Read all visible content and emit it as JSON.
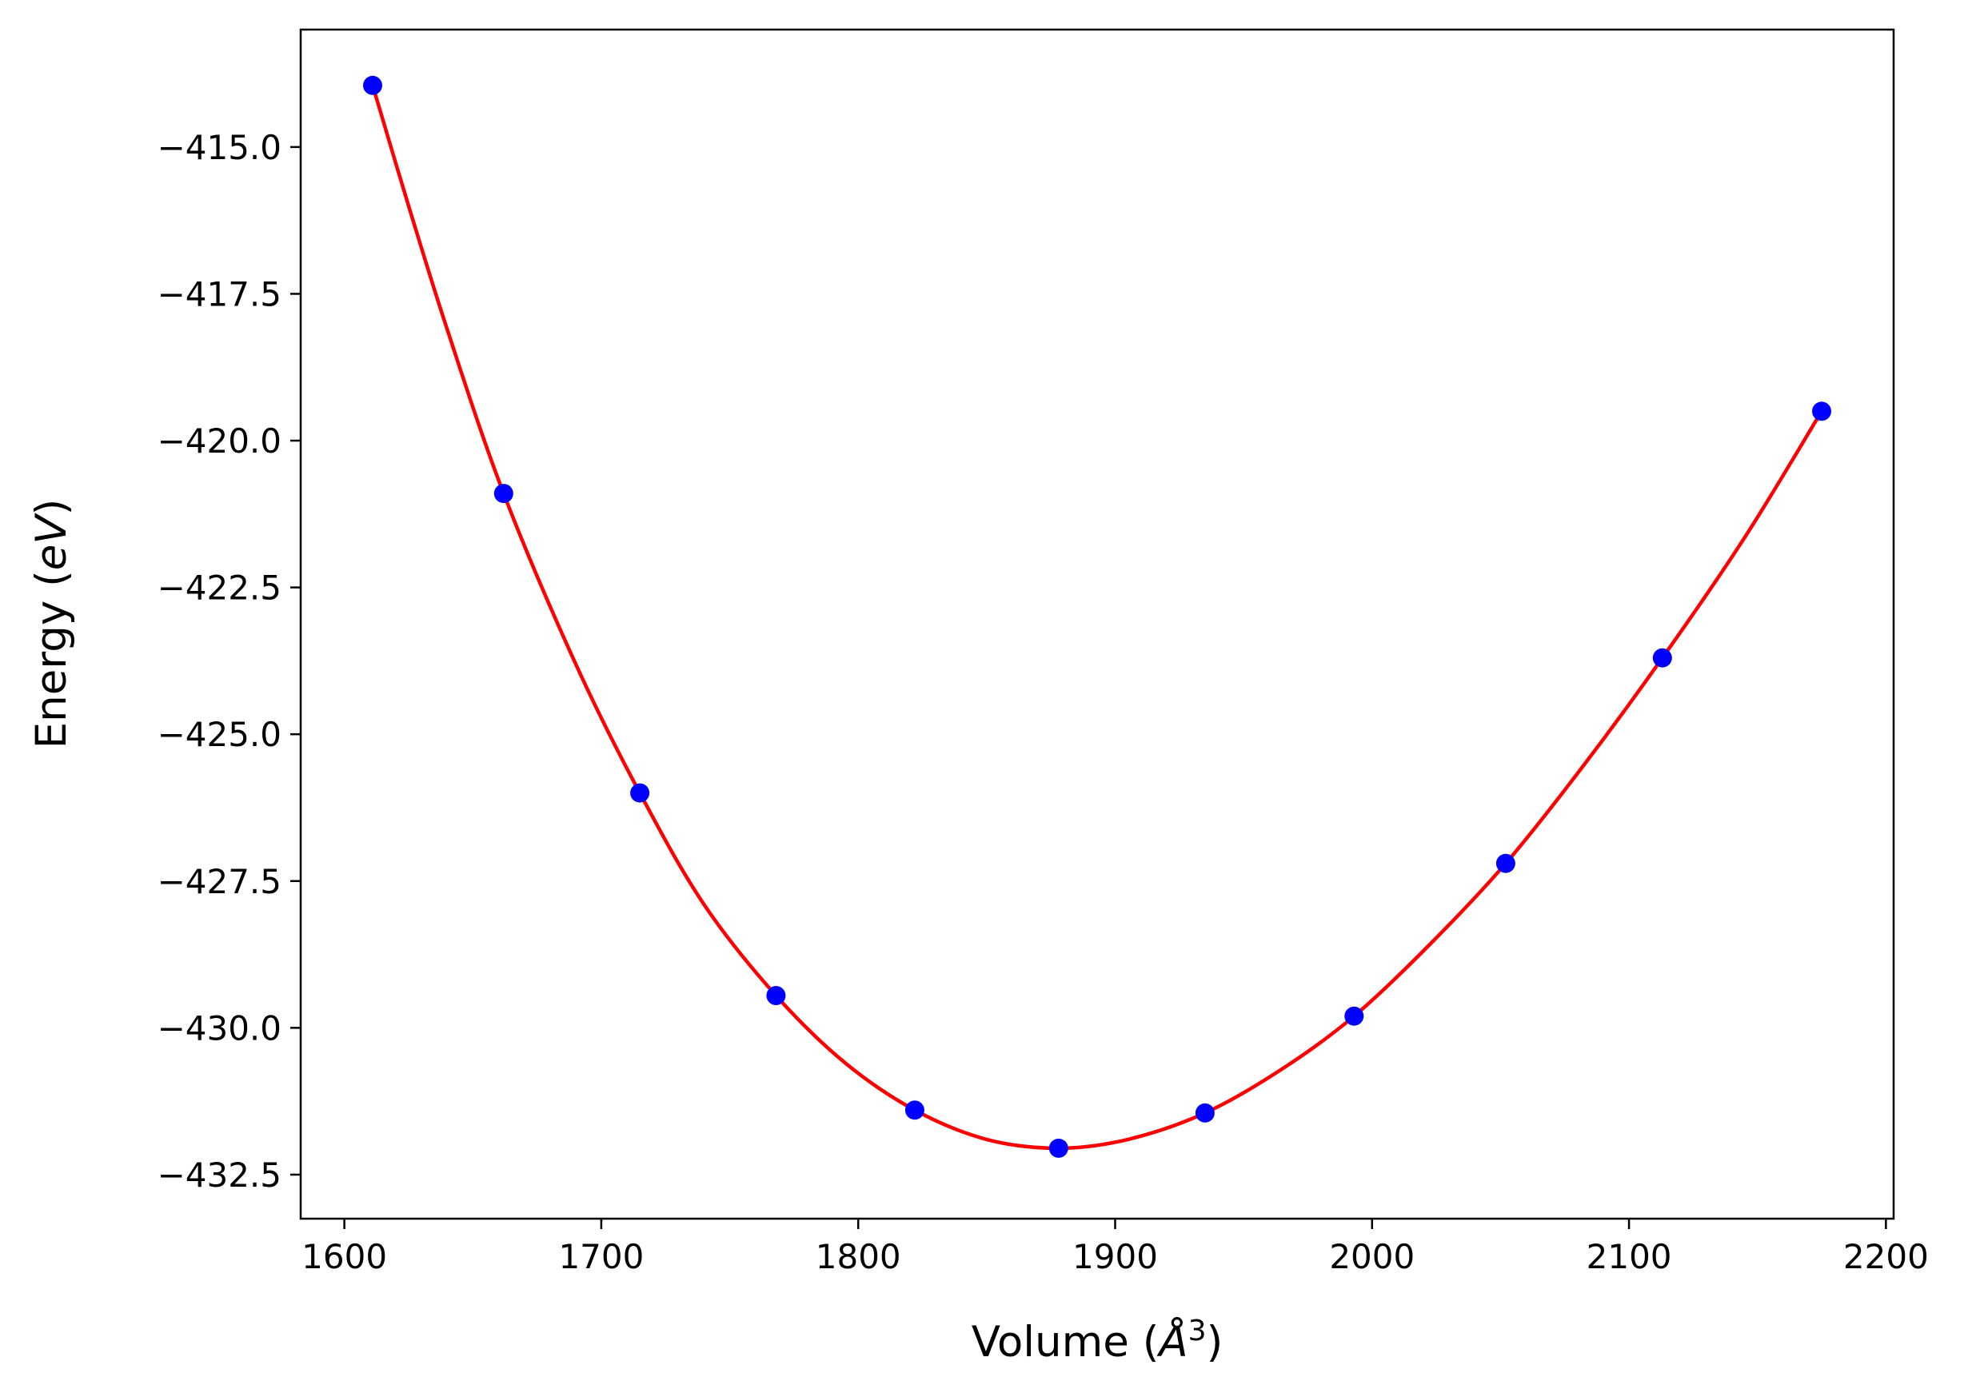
{
  "chart_data": {
    "type": "scatter",
    "title": "",
    "xlabel_text": "Volume (",
    "xlabel_unit": "Å",
    "xlabel_sup": "3",
    "xlabel_close": ")",
    "ylabel_text": "Energy (",
    "ylabel_unit": "eV",
    "ylabel_close": ")",
    "xlim": [
      1583,
      2203
    ],
    "ylim": [
      -433.25,
      -413.0
    ],
    "xticks": [
      1600,
      1700,
      1800,
      1900,
      2000,
      2100,
      2200
    ],
    "xtick_labels": [
      "1600",
      "1700",
      "1800",
      "1900",
      "2000",
      "2100",
      "2200"
    ],
    "yticks": [
      -415.0,
      -417.5,
      -420.0,
      -422.5,
      -425.0,
      -427.5,
      -430.0,
      -432.5
    ],
    "ytick_labels": [
      "−415.0",
      "−417.5",
      "−420.0",
      "−422.5",
      "−425.0",
      "−427.5",
      "−430.0",
      "−432.5"
    ],
    "grid": false,
    "series": [
      {
        "kind": "points",
        "color": "#0000ff",
        "x": [
          1611,
          1662,
          1715,
          1768,
          1822,
          1878,
          1935,
          1993,
          2052,
          2113,
          2175
        ],
        "y": [
          -413.95,
          -420.9,
          -426.0,
          -429.45,
          -431.4,
          -432.05,
          -431.45,
          -429.8,
          -427.2,
          -423.7,
          -419.5
        ]
      },
      {
        "kind": "fit-curve",
        "color": "#ff0000",
        "x": [
          1611,
          1625,
          1640,
          1662,
          1690,
          1715,
          1740,
          1768,
          1795,
          1822,
          1850,
          1878,
          1905,
          1935,
          1965,
          1993,
          2022,
          2052,
          2082,
          2113,
          2145,
          2175
        ],
        "y": [
          -413.95,
          -416.0,
          -418.1,
          -420.9,
          -423.8,
          -426.0,
          -427.9,
          -429.45,
          -430.6,
          -431.4,
          -431.9,
          -432.05,
          -431.9,
          -431.45,
          -430.7,
          -429.8,
          -428.6,
          -427.2,
          -425.55,
          -423.7,
          -421.65,
          -419.5
        ]
      }
    ]
  }
}
